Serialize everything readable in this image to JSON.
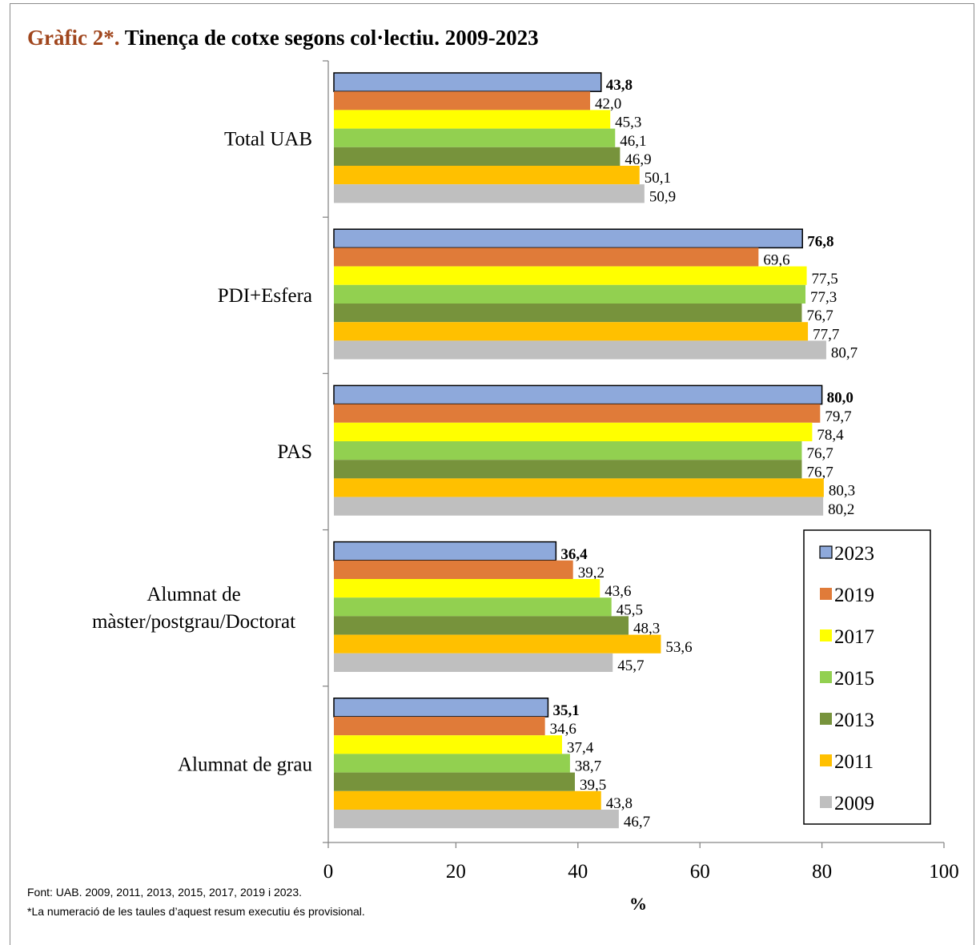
{
  "title": {
    "prefix": "Gràfic 2*.",
    "text": " Tinença de cotxe segons col·lectiu. 2009-2023"
  },
  "chart_data": {
    "type": "bar",
    "orientation": "horizontal",
    "categories": [
      "Total UAB",
      "PDI+Esfera",
      "PAS",
      "Alumnat de màster/postgrau/Doctorat",
      "Alumnat de grau"
    ],
    "series": [
      {
        "name": "2023",
        "color": "#8ea9db",
        "bold_labels": true,
        "values": [
          43.8,
          76.8,
          80.0,
          36.4,
          35.1
        ]
      },
      {
        "name": "2019",
        "color": "#e07b39",
        "values": [
          42.0,
          69.6,
          79.7,
          39.2,
          34.6
        ]
      },
      {
        "name": "2017",
        "color": "#ffff00",
        "values": [
          45.3,
          77.5,
          78.4,
          43.6,
          37.4
        ]
      },
      {
        "name": "2015",
        "color": "#92d050",
        "values": [
          46.1,
          77.3,
          76.7,
          45.5,
          38.7
        ]
      },
      {
        "name": "2013",
        "color": "#77933c",
        "values": [
          46.9,
          76.7,
          76.7,
          48.3,
          39.5
        ]
      },
      {
        "name": "2011",
        "color": "#ffc000",
        "values": [
          50.1,
          77.7,
          80.3,
          53.6,
          43.8
        ]
      },
      {
        "name": "2009",
        "color": "#bfbfbf",
        "values": [
          50.9,
          80.7,
          80.2,
          45.7,
          46.7
        ]
      }
    ],
    "value_labels": [
      [
        "43,8",
        "76,8",
        "80,0",
        "36,4",
        "35,1"
      ],
      [
        "42,0",
        "69,6",
        "79,7",
        "39,2",
        "34,6"
      ],
      [
        "45,3",
        "77,5",
        "78,4",
        "43,6",
        "37,4"
      ],
      [
        "46,1",
        "77,3",
        "76,7",
        "45,5",
        "38,7"
      ],
      [
        "46,9",
        "76,7",
        "76,7",
        "48,3",
        "39,5"
      ],
      [
        "50,1",
        "77,7",
        "80,3",
        "53,6",
        "43,8"
      ],
      [
        "50,9",
        "80,7",
        "80,2",
        "45,7",
        "46,7"
      ]
    ],
    "xlim": [
      0,
      100
    ],
    "xticks": [
      "0",
      "20",
      "40",
      "60",
      "80",
      "100"
    ],
    "xlabel": "%",
    "ylabel": "",
    "grid": false,
    "legend_position": "bottom-right"
  },
  "footnotes": {
    "source": "Font: UAB. 2009, 2011, 2013, 2015, 2017, 2019 i 2023.",
    "note": "*La  numeració de les taules d’aquest resum executiu és provisional."
  }
}
